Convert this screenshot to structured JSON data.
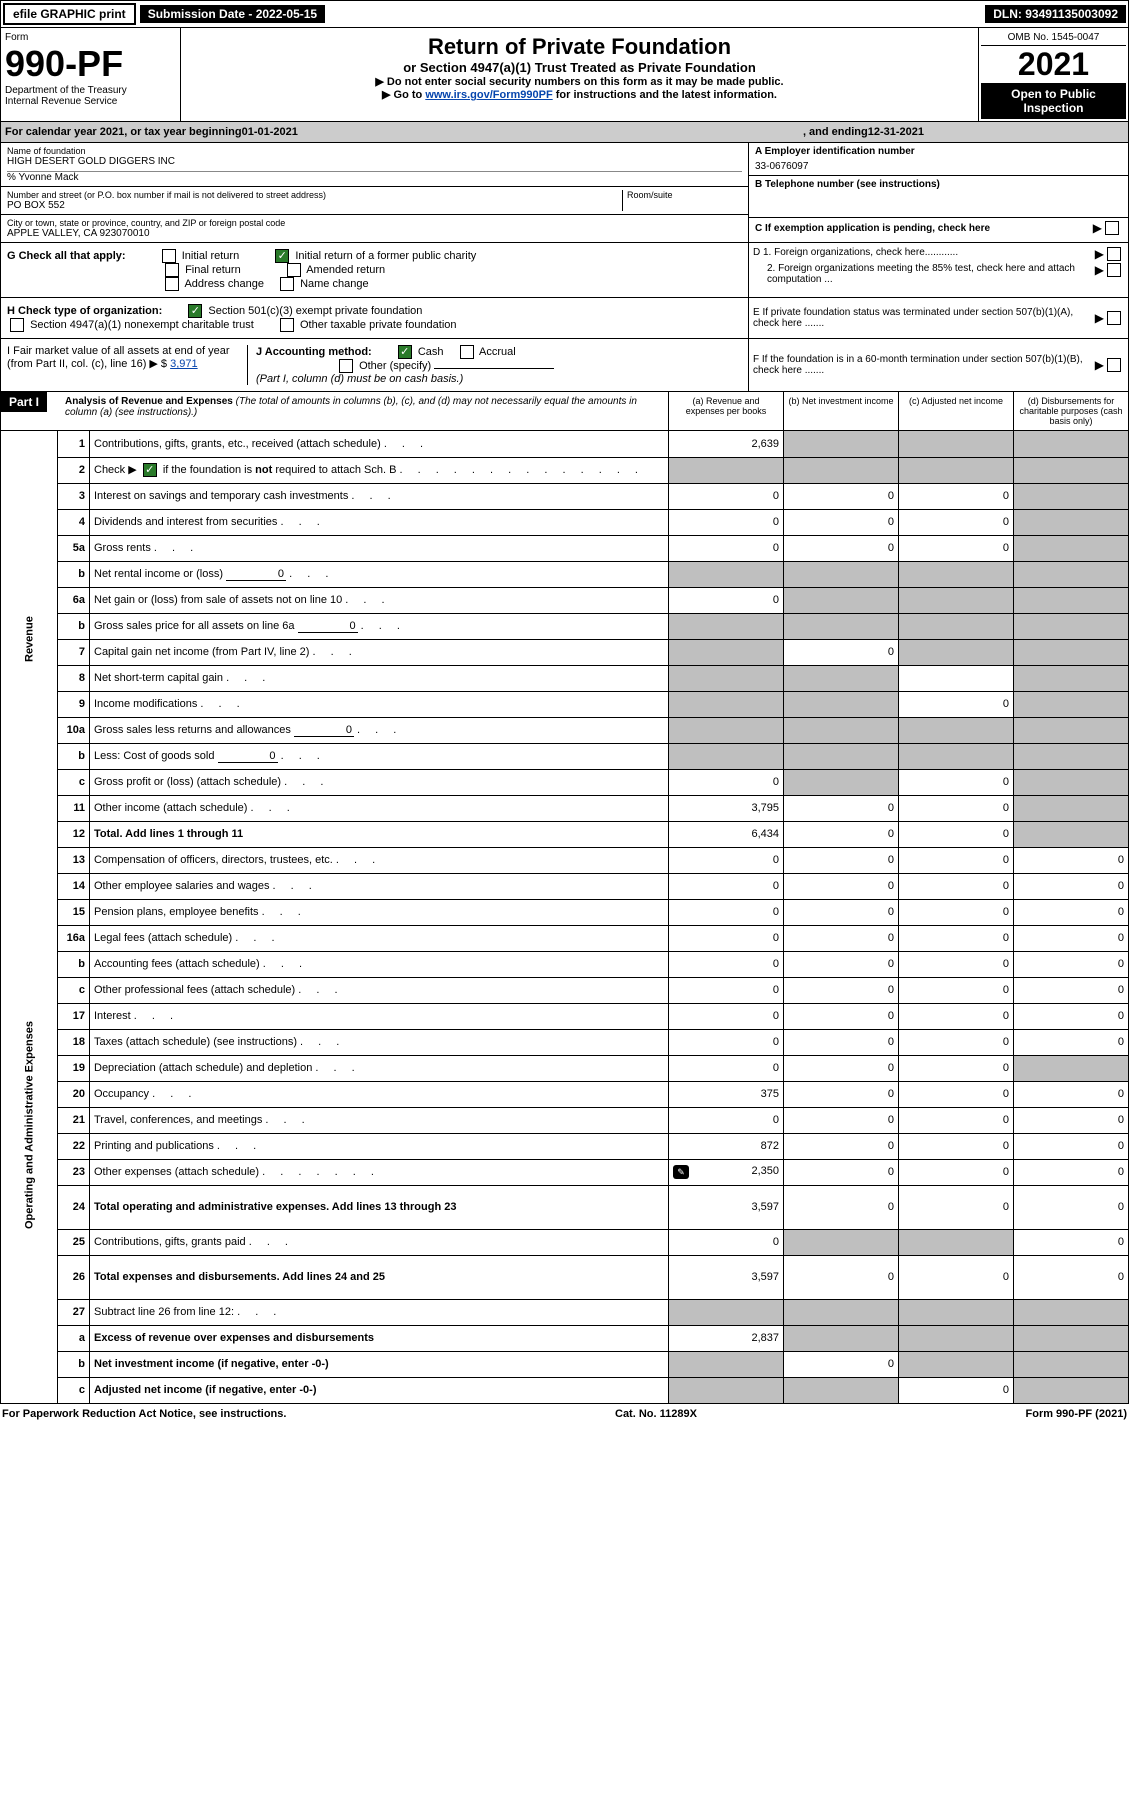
{
  "topbar": {
    "efile": "efile GRAPHIC print",
    "submission": "Submission Date - 2022-05-15",
    "dln": "DLN: 93491135003092"
  },
  "header": {
    "form_label": "Form",
    "form_num": "990-PF",
    "dept": "Department of the Treasury\nInternal Revenue Service",
    "title": "Return of Private Foundation",
    "subtitle": "or Section 4947(a)(1) Trust Treated as Private Foundation",
    "note1": "▶ Do not enter social security numbers on this form as it may be made public.",
    "note2_pre": "▶ Go to ",
    "note2_link": "www.irs.gov/Form990PF",
    "note2_post": " for instructions and the latest information.",
    "omb": "OMB No. 1545-0047",
    "year": "2021",
    "open": "Open to Public Inspection"
  },
  "calyear": {
    "pre": "For calendar year 2021, or tax year beginning ",
    "begin": "01-01-2021",
    "mid": " , and ending ",
    "end": "12-31-2021"
  },
  "id": {
    "name_label": "Name of foundation",
    "name": "HIGH DESERT GOLD DIGGERS INC",
    "care_of": "% Yvonne Mack",
    "addr_label": "Number and street (or P.O. box number if mail is not delivered to street address)",
    "addr": "PO BOX 552",
    "room_label": "Room/suite",
    "city_label": "City or town, state or province, country, and ZIP or foreign postal code",
    "city": "APPLE VALLEY, CA  923070010",
    "A_label": "A Employer identification number",
    "A_val": "33-0676097",
    "B_label": "B Telephone number (see instructions)",
    "C_label": "C If exemption application is pending, check here",
    "D1": "D 1. Foreign organizations, check here............",
    "D2": "2. Foreign organizations meeting the 85% test, check here and attach computation ...",
    "E": "E  If private foundation status was terminated under section 507(b)(1)(A), check here .......",
    "F": "F  If the foundation is in a 60-month termination under section 507(b)(1)(B), check here .......",
    "G": "G Check all that apply:",
    "G_opts": [
      "Initial return",
      "Initial return of a former public charity",
      "Final return",
      "Amended return",
      "Address change",
      "Name change"
    ],
    "H": "H Check type of organization:",
    "H1": "Section 501(c)(3) exempt private foundation",
    "H2": "Section 4947(a)(1) nonexempt charitable trust",
    "H3": "Other taxable private foundation",
    "I_pre": "I Fair market value of all assets at end of year (from Part II, col. (c), line 16) ▶ $ ",
    "I_val": "3,971",
    "J": "J Accounting method:",
    "J_opts": [
      "Cash",
      "Accrual"
    ],
    "J_other": "Other (specify)",
    "J_note": "(Part I, column (d) must be on cash basis.)"
  },
  "part1": {
    "label": "Part I",
    "title": "Analysis of Revenue and Expenses",
    "note": "(The total of amounts in columns (b), (c), and (d) may not necessarily equal the amounts in column (a) (see instructions).)",
    "cols": {
      "a": "(a) Revenue and expenses per books",
      "b": "(b) Net investment income",
      "c": "(c) Adjusted net income",
      "d": "(d) Disbursements for charitable purposes (cash basis only)"
    }
  },
  "sections": {
    "revenue": "Revenue",
    "expenses": "Operating and Administrative Expenses"
  },
  "lines": [
    {
      "n": "1",
      "desc": "Contributions, gifts, grants, etc., received (attach schedule)",
      "a": "2,639",
      "b": "",
      "c": "",
      "d": "",
      "shade_b": true,
      "shade_c": true,
      "shade_d": true
    },
    {
      "n": "2",
      "desc": "Check ▶ ☑ if the foundation is not required to attach Sch. B",
      "a": "",
      "b": "",
      "c": "",
      "d": "",
      "shade_a": true,
      "shade_b": true,
      "shade_c": true,
      "shade_d": true,
      "checked": true
    },
    {
      "n": "3",
      "desc": "Interest on savings and temporary cash investments",
      "a": "0",
      "b": "0",
      "c": "0",
      "d": "",
      "shade_d": true
    },
    {
      "n": "4",
      "desc": "Dividends and interest from securities",
      "a": "0",
      "b": "0",
      "c": "0",
      "d": "",
      "shade_d": true
    },
    {
      "n": "5a",
      "desc": "Gross rents",
      "a": "0",
      "b": "0",
      "c": "0",
      "d": "",
      "shade_d": true
    },
    {
      "n": "b",
      "desc": "Net rental income or (loss)",
      "inline": "0",
      "a": "",
      "b": "",
      "c": "",
      "d": "",
      "shade_a": true,
      "shade_b": true,
      "shade_c": true,
      "shade_d": true
    },
    {
      "n": "6a",
      "desc": "Net gain or (loss) from sale of assets not on line 10",
      "a": "0",
      "b": "",
      "c": "",
      "d": "",
      "shade_b": true,
      "shade_c": true,
      "shade_d": true
    },
    {
      "n": "b",
      "desc": "Gross sales price for all assets on line 6a",
      "inline": "0",
      "a": "",
      "b": "",
      "c": "",
      "d": "",
      "shade_a": true,
      "shade_b": true,
      "shade_c": true,
      "shade_d": true
    },
    {
      "n": "7",
      "desc": "Capital gain net income (from Part IV, line 2)",
      "a": "",
      "b": "0",
      "c": "",
      "d": "",
      "shade_a": true,
      "shade_c": true,
      "shade_d": true
    },
    {
      "n": "8",
      "desc": "Net short-term capital gain",
      "a": "",
      "b": "",
      "c": "",
      "d": "",
      "shade_a": true,
      "shade_b": true,
      "shade_d": true
    },
    {
      "n": "9",
      "desc": "Income modifications",
      "a": "",
      "b": "",
      "c": "0",
      "d": "",
      "shade_a": true,
      "shade_b": true,
      "shade_d": true
    },
    {
      "n": "10a",
      "desc": "Gross sales less returns and allowances",
      "inline": "0",
      "a": "",
      "b": "",
      "c": "",
      "d": "",
      "shade_a": true,
      "shade_b": true,
      "shade_c": true,
      "shade_d": true
    },
    {
      "n": "b",
      "desc": "Less: Cost of goods sold",
      "inline": "0",
      "a": "",
      "b": "",
      "c": "",
      "d": "",
      "shade_a": true,
      "shade_b": true,
      "shade_c": true,
      "shade_d": true
    },
    {
      "n": "c",
      "desc": "Gross profit or (loss) (attach schedule)",
      "a": "0",
      "b": "",
      "c": "0",
      "d": "",
      "shade_b": true,
      "shade_d": true
    },
    {
      "n": "11",
      "desc": "Other income (attach schedule)",
      "a": "3,795",
      "b": "0",
      "c": "0",
      "d": "",
      "shade_d": true
    },
    {
      "n": "12",
      "desc": "Total. Add lines 1 through 11",
      "a": "6,434",
      "b": "0",
      "c": "0",
      "d": "",
      "bold": true,
      "shade_d": true
    },
    {
      "n": "13",
      "desc": "Compensation of officers, directors, trustees, etc.",
      "a": "0",
      "b": "0",
      "c": "0",
      "d": "0"
    },
    {
      "n": "14",
      "desc": "Other employee salaries and wages",
      "a": "0",
      "b": "0",
      "c": "0",
      "d": "0"
    },
    {
      "n": "15",
      "desc": "Pension plans, employee benefits",
      "a": "0",
      "b": "0",
      "c": "0",
      "d": "0"
    },
    {
      "n": "16a",
      "desc": "Legal fees (attach schedule)",
      "a": "0",
      "b": "0",
      "c": "0",
      "d": "0"
    },
    {
      "n": "b",
      "desc": "Accounting fees (attach schedule)",
      "a": "0",
      "b": "0",
      "c": "0",
      "d": "0"
    },
    {
      "n": "c",
      "desc": "Other professional fees (attach schedule)",
      "a": "0",
      "b": "0",
      "c": "0",
      "d": "0"
    },
    {
      "n": "17",
      "desc": "Interest",
      "a": "0",
      "b": "0",
      "c": "0",
      "d": "0"
    },
    {
      "n": "18",
      "desc": "Taxes (attach schedule) (see instructions)",
      "a": "0",
      "b": "0",
      "c": "0",
      "d": "0"
    },
    {
      "n": "19",
      "desc": "Depreciation (attach schedule) and depletion",
      "a": "0",
      "b": "0",
      "c": "0",
      "d": "",
      "shade_d": true
    },
    {
      "n": "20",
      "desc": "Occupancy",
      "a": "375",
      "b": "0",
      "c": "0",
      "d": "0"
    },
    {
      "n": "21",
      "desc": "Travel, conferences, and meetings",
      "a": "0",
      "b": "0",
      "c": "0",
      "d": "0"
    },
    {
      "n": "22",
      "desc": "Printing and publications",
      "a": "872",
      "b": "0",
      "c": "0",
      "d": "0"
    },
    {
      "n": "23",
      "desc": "Other expenses (attach schedule)",
      "a": "2,350",
      "b": "0",
      "c": "0",
      "d": "0",
      "pencil": true
    },
    {
      "n": "24",
      "desc": "Total operating and administrative expenses. Add lines 13 through 23",
      "a": "3,597",
      "b": "0",
      "c": "0",
      "d": "0",
      "bold": true,
      "tall": true
    },
    {
      "n": "25",
      "desc": "Contributions, gifts, grants paid",
      "a": "0",
      "b": "",
      "c": "",
      "d": "0",
      "shade_b": true,
      "shade_c": true
    },
    {
      "n": "26",
      "desc": "Total expenses and disbursements. Add lines 24 and 25",
      "a": "3,597",
      "b": "0",
      "c": "0",
      "d": "0",
      "bold": true,
      "tall": true
    },
    {
      "n": "27",
      "desc": "Subtract line 26 from line 12:",
      "a": "",
      "b": "",
      "c": "",
      "d": "",
      "shade_a": true,
      "shade_b": true,
      "shade_c": true,
      "shade_d": true
    },
    {
      "n": "a",
      "desc": "Excess of revenue over expenses and disbursements",
      "a": "2,837",
      "b": "",
      "c": "",
      "d": "",
      "bold": true,
      "shade_b": true,
      "shade_c": true,
      "shade_d": true
    },
    {
      "n": "b",
      "desc": "Net investment income (if negative, enter -0-)",
      "a": "",
      "b": "0",
      "c": "",
      "d": "",
      "bold": true,
      "shade_a": true,
      "shade_c": true,
      "shade_d": true
    },
    {
      "n": "c",
      "desc": "Adjusted net income (if negative, enter -0-)",
      "a": "",
      "b": "",
      "c": "0",
      "d": "",
      "bold": true,
      "shade_a": true,
      "shade_b": true,
      "shade_d": true
    }
  ],
  "footer": {
    "left": "For Paperwork Reduction Act Notice, see instructions.",
    "mid": "Cat. No. 11289X",
    "right": "Form 990-PF (2021)"
  }
}
